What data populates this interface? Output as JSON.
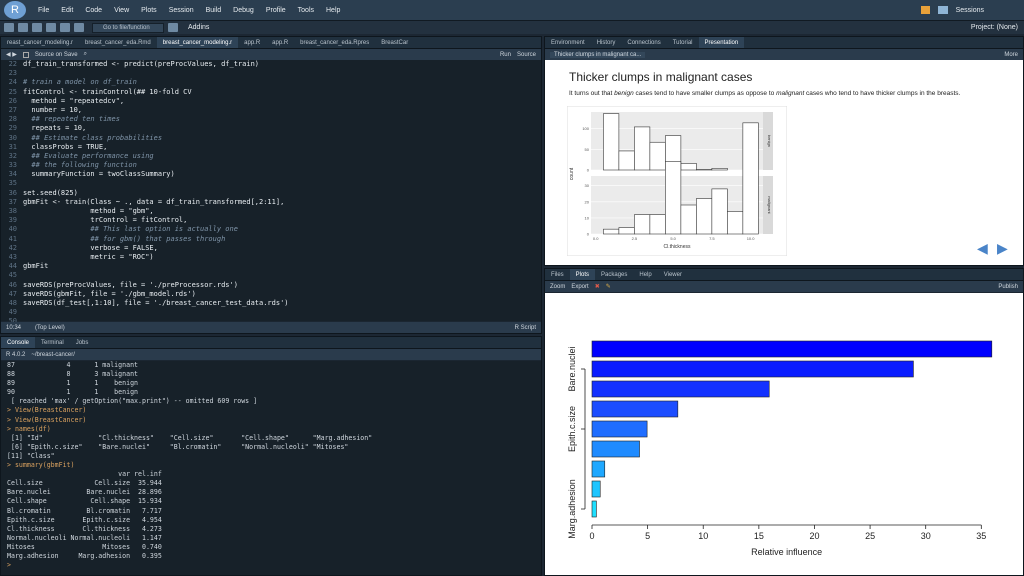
{
  "menu": {
    "logo": "R",
    "items": [
      "File",
      "Edit",
      "Code",
      "View",
      "Plots",
      "Session",
      "Build",
      "Debug",
      "Profile",
      "Tools",
      "Help"
    ],
    "sessions": "Sessions"
  },
  "toolbar": {
    "goto_placeholder": "Go to file/function",
    "addins": "Addins",
    "project": "Project: (None)"
  },
  "editor": {
    "tabs": [
      "reast_cancer_modeling.r",
      "breast_cancer_eda.Rmd",
      "breast_cancer_modeling.r",
      "app.R",
      "app.R",
      "breast_cancer_eda.Rpres",
      "BreastCar"
    ],
    "active_tab": 2,
    "source_on_save": "Source on Save",
    "run": "Run",
    "source": "Source",
    "status_pos": "10:34",
    "status_scope": "(Top Level)",
    "status_type": "R Script",
    "lines": [
      {
        "n": "22",
        "t": "df_train_transformed <- predict(preProcValues, df_train)"
      },
      {
        "n": "23",
        "t": ""
      },
      {
        "n": "24",
        "t": "# train a model on df_train",
        "c": "cm"
      },
      {
        "n": "25",
        "t": "fitControl <- trainControl(## 10-fold CV"
      },
      {
        "n": "26",
        "t": "  method = \"repeatedcv\","
      },
      {
        "n": "27",
        "t": "  number = 10,"
      },
      {
        "n": "28",
        "t": "  ## repeated ten times",
        "c": "cm"
      },
      {
        "n": "29",
        "t": "  repeats = 10,"
      },
      {
        "n": "30",
        "t": "  ## Estimate class probabilities",
        "c": "cm"
      },
      {
        "n": "31",
        "t": "  classProbs = TRUE,"
      },
      {
        "n": "32",
        "t": "  ## Evaluate performance using",
        "c": "cm"
      },
      {
        "n": "33",
        "t": "  ## the following function",
        "c": "cm"
      },
      {
        "n": "34",
        "t": "  summaryFunction = twoClassSummary)"
      },
      {
        "n": "35",
        "t": ""
      },
      {
        "n": "36",
        "t": "set.seed(825)"
      },
      {
        "n": "37",
        "t": "gbmFit <- train(Class ~ ., data = df_train_transformed[,2:11],"
      },
      {
        "n": "38",
        "t": "                method = \"gbm\","
      },
      {
        "n": "39",
        "t": "                trControl = fitControl,"
      },
      {
        "n": "40",
        "t": "                ## This last option is actually one",
        "c": "cm"
      },
      {
        "n": "41",
        "t": "                ## for gbm() that passes through",
        "c": "cm"
      },
      {
        "n": "42",
        "t": "                verbose = FALSE,"
      },
      {
        "n": "43",
        "t": "                metric = \"ROC\")"
      },
      {
        "n": "44",
        "t": "gbmFit"
      },
      {
        "n": "45",
        "t": ""
      },
      {
        "n": "46",
        "t": "saveRDS(preProcValues, file = './preProcessor.rds')"
      },
      {
        "n": "47",
        "t": "saveRDS(gbmFit, file = './gbm_model.rds')"
      },
      {
        "n": "48",
        "t": "saveRDS(df_test[,1:10], file = './breast_cancer_test_data.rds')"
      },
      {
        "n": "49",
        "t": ""
      },
      {
        "n": "50",
        "t": ""
      }
    ]
  },
  "console": {
    "tabs": [
      "Console",
      "Terminal",
      "Jobs"
    ],
    "r_version": "R 4.0.2",
    "wd": "~/breast-cancer/",
    "lines": [
      {
        "t": "87             4      1 malignant"
      },
      {
        "t": "88             8      3 malignant"
      },
      {
        "t": "89             1      1    benign"
      },
      {
        "t": "90             1      1    benign"
      },
      {
        "t": " [ reached 'max' / getOption(\"max.print\") -- omitted 609 rows ]"
      },
      {
        "t": "> View(BreastCancer)",
        "c": "prompt"
      },
      {
        "t": "> View(BreastCancer)",
        "c": "prompt"
      },
      {
        "t": "> names(df)",
        "c": "prompt"
      },
      {
        "t": " [1] \"Id\"              \"Cl.thickness\"    \"Cell.size\"       \"Cell.shape\"      \"Marg.adhesion\""
      },
      {
        "t": " [6] \"Epith.c.size\"    \"Bare.nuclei\"     \"Bl.cromatin\"     \"Normal.nucleoli\" \"Mitoses\""
      },
      {
        "t": "[11] \"Class\""
      },
      {
        "t": "> summary(gbmFit)",
        "c": "prompt"
      },
      {
        "t": "                            var rel.inf"
      },
      {
        "t": "Cell.size             Cell.size  35.944"
      },
      {
        "t": "Bare.nuclei         Bare.nuclei  28.896"
      },
      {
        "t": "Cell.shape           Cell.shape  15.934"
      },
      {
        "t": "Bl.cromatin         Bl.cromatin   7.717"
      },
      {
        "t": "Epith.c.size       Epith.c.size   4.954"
      },
      {
        "t": "Cl.thickness       Cl.thickness   4.273"
      },
      {
        "t": "Normal.nucleoli Normal.nucleoli   1.147"
      },
      {
        "t": "Mitoses                 Mitoses   0.740"
      },
      {
        "t": "Marg.adhesion     Marg.adhesion   0.395"
      },
      {
        "t": "> ",
        "c": "prompt"
      }
    ]
  },
  "env_pane": {
    "tabs": [
      "Environment",
      "History",
      "Connections",
      "Tutorial",
      "Presentation"
    ],
    "active_tab": 4,
    "slide_tab": "Thicker clumps in malignant ca...",
    "more": "More",
    "slide_title": "Thicker clumps in malignant cases",
    "slide_text_parts": [
      "It turns out that ",
      "benign",
      " cases tend to have smaller clumps as oppose to ",
      "malignant",
      " cases who tend to have thicker clumps in the breasts."
    ]
  },
  "plots_pane": {
    "tabs": [
      "Files",
      "Plots",
      "Packages",
      "Help",
      "Viewer"
    ],
    "active_tab": 1,
    "zoom": "Zoom",
    "export": "Export",
    "publish": "Publish"
  },
  "chart_data": [
    {
      "type": "bar",
      "title": "",
      "facets": [
        "benign",
        "malignant"
      ],
      "xlabel": "Cl.thickness",
      "ylabel": "count",
      "xticks": [
        "0.0",
        "2.5",
        "5.0",
        "7.5",
        "10.0"
      ],
      "benign_yticks": [
        "0",
        "50",
        "100"
      ],
      "malignant_yticks": [
        "0",
        "10",
        "20",
        "30"
      ],
      "bins": [
        1,
        2,
        3,
        4,
        5,
        6,
        7,
        8,
        9,
        10
      ],
      "benign_counts": [
        136,
        46,
        104,
        67,
        83,
        16,
        1,
        4,
        0,
        0
      ],
      "malignant_counts": [
        3,
        4,
        12,
        12,
        45,
        18,
        22,
        28,
        14,
        69
      ],
      "benign_ylim": [
        0,
        140
      ],
      "malignant_ylim": [
        0,
        36
      ]
    },
    {
      "type": "bar",
      "orientation": "horizontal",
      "xlabel": "Relative influence",
      "ylabel_ticks": [
        "Bare.nuclei",
        "Epith.c.size",
        "Marg.adhesion"
      ],
      "xticks": [
        "0",
        "5",
        "10",
        "15",
        "20",
        "25",
        "30",
        "35"
      ],
      "xlim": [
        0,
        36.5
      ],
      "values": [
        35.944,
        28.896,
        15.934,
        7.717,
        4.954,
        4.273,
        1.147,
        0.74,
        0.395
      ],
      "colors": [
        "#0000ff",
        "#0a1cff",
        "#1331ff",
        "#1c4dff",
        "#1f6dff",
        "#1f8bff",
        "#1fa8ff",
        "#1fc5ff",
        "#1fdfff"
      ]
    }
  ]
}
